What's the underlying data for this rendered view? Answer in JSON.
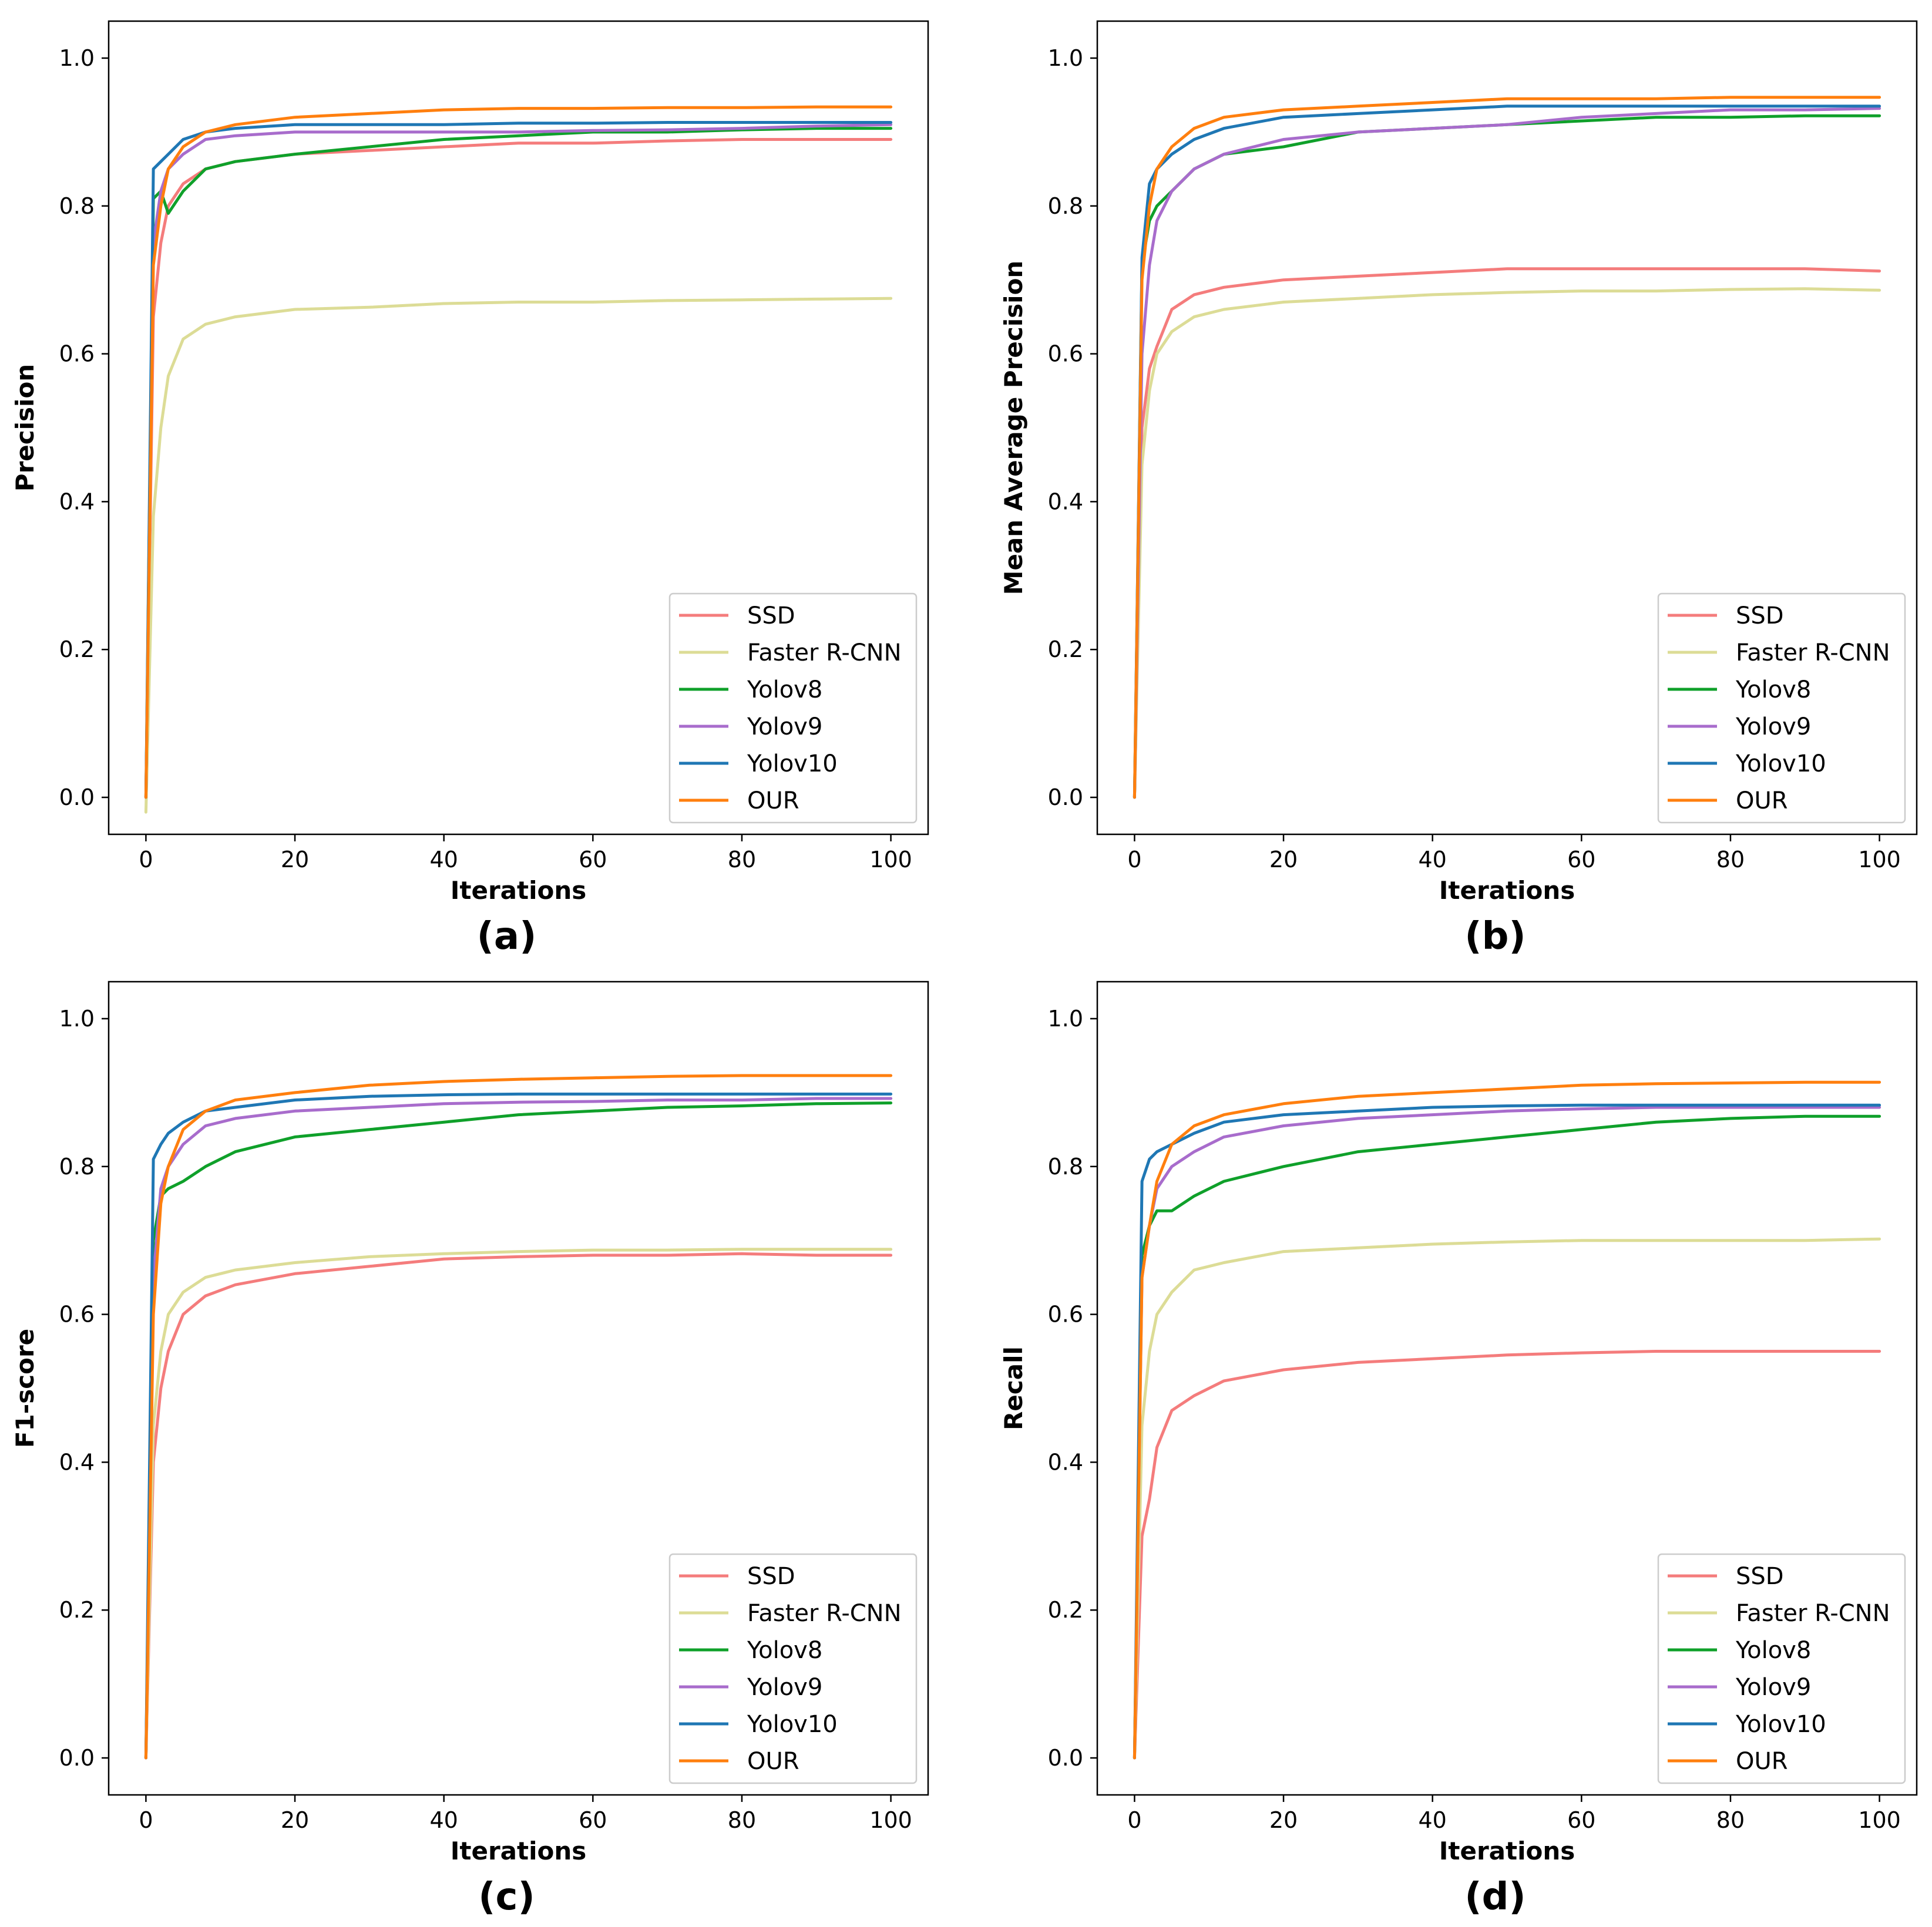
{
  "colors": {
    "SSD": "#f47c7c",
    "Faster R-CNN": "#dcdc96",
    "Yolov8": "#0fa02a",
    "Yolov9": "#a86ccc",
    "Yolov10": "#1f77b4",
    "OUR": "#ff7f0e",
    "axis": "#000000",
    "legend_border": "#cccccc"
  },
  "chart_data": [
    {
      "type": "line",
      "panel_label": "(a)",
      "title": "",
      "xlabel": "Iterations",
      "ylabel": "Precision",
      "xlim": [
        -5,
        105
      ],
      "ylim": [
        -0.05,
        1.05
      ],
      "xticks": [
        0,
        20,
        40,
        60,
        80,
        100
      ],
      "xtick_labels": [
        "0",
        "20",
        "40",
        "60",
        "80",
        "100"
      ],
      "yticks": [
        0.0,
        0.2,
        0.4,
        0.6,
        0.8,
        1.0
      ],
      "ytick_labels": [
        "0.0",
        "0.2",
        "0.4",
        "0.6",
        "0.8",
        "1.0"
      ],
      "grid": false,
      "legend_position": "lower-right",
      "x": [
        0,
        1,
        2,
        3,
        5,
        8,
        12,
        20,
        30,
        40,
        50,
        60,
        70,
        80,
        90,
        100
      ],
      "series": [
        {
          "name": "SSD",
          "values": [
            0.0,
            0.65,
            0.75,
            0.8,
            0.83,
            0.85,
            0.86,
            0.87,
            0.875,
            0.88,
            0.885,
            0.885,
            0.888,
            0.89,
            0.89,
            0.89
          ]
        },
        {
          "name": "Faster R-CNN",
          "values": [
            -0.02,
            0.38,
            0.5,
            0.57,
            0.62,
            0.64,
            0.65,
            0.66,
            0.663,
            0.668,
            0.67,
            0.67,
            0.672,
            0.673,
            0.674,
            0.675
          ]
        },
        {
          "name": "Yolov8",
          "values": [
            0.0,
            0.81,
            0.82,
            0.79,
            0.82,
            0.85,
            0.86,
            0.87,
            0.88,
            0.89,
            0.895,
            0.9,
            0.9,
            0.903,
            0.905,
            0.905
          ]
        },
        {
          "name": "Yolov9",
          "values": [
            0.0,
            0.75,
            0.82,
            0.85,
            0.87,
            0.89,
            0.895,
            0.9,
            0.9,
            0.9,
            0.9,
            0.902,
            0.903,
            0.905,
            0.908,
            0.91
          ]
        },
        {
          "name": "Yolov10",
          "values": [
            0.0,
            0.85,
            0.86,
            0.87,
            0.89,
            0.9,
            0.905,
            0.91,
            0.91,
            0.91,
            0.912,
            0.912,
            0.913,
            0.913,
            0.913,
            0.913
          ]
        },
        {
          "name": "OUR",
          "values": [
            0.0,
            0.72,
            0.8,
            0.85,
            0.88,
            0.9,
            0.91,
            0.92,
            0.925,
            0.93,
            0.932,
            0.932,
            0.933,
            0.933,
            0.934,
            0.934
          ]
        }
      ]
    },
    {
      "type": "line",
      "panel_label": "(b)",
      "title": "",
      "xlabel": "Iterations",
      "ylabel": "Mean Average Precision",
      "xlim": [
        -5,
        105
      ],
      "ylim": [
        -0.05,
        1.05
      ],
      "xticks": [
        0,
        20,
        40,
        60,
        80,
        100
      ],
      "xtick_labels": [
        "0",
        "20",
        "40",
        "60",
        "80",
        "100"
      ],
      "yticks": [
        0.0,
        0.2,
        0.4,
        0.6,
        0.8,
        1.0
      ],
      "ytick_labels": [
        "0.0",
        "0.2",
        "0.4",
        "0.6",
        "0.8",
        "1.0"
      ],
      "grid": false,
      "legend_position": "lower-right",
      "x": [
        0,
        1,
        2,
        3,
        5,
        8,
        12,
        20,
        30,
        40,
        50,
        60,
        70,
        80,
        90,
        100
      ],
      "series": [
        {
          "name": "SSD",
          "values": [
            0.0,
            0.5,
            0.58,
            0.61,
            0.66,
            0.68,
            0.69,
            0.7,
            0.705,
            0.71,
            0.715,
            0.715,
            0.715,
            0.715,
            0.715,
            0.712
          ]
        },
        {
          "name": "Faster R-CNN",
          "values": [
            0.0,
            0.45,
            0.55,
            0.6,
            0.63,
            0.65,
            0.66,
            0.67,
            0.675,
            0.68,
            0.683,
            0.685,
            0.685,
            0.687,
            0.688,
            0.686
          ]
        },
        {
          "name": "Yolov8",
          "values": [
            0.0,
            0.72,
            0.78,
            0.8,
            0.82,
            0.85,
            0.87,
            0.88,
            0.9,
            0.905,
            0.91,
            0.915,
            0.92,
            0.92,
            0.922,
            0.922
          ]
        },
        {
          "name": "Yolov9",
          "values": [
            0.0,
            0.6,
            0.72,
            0.78,
            0.82,
            0.85,
            0.87,
            0.89,
            0.9,
            0.905,
            0.91,
            0.92,
            0.925,
            0.93,
            0.93,
            0.932
          ]
        },
        {
          "name": "Yolov10",
          "values": [
            0.0,
            0.73,
            0.83,
            0.85,
            0.87,
            0.89,
            0.905,
            0.92,
            0.925,
            0.93,
            0.935,
            0.935,
            0.935,
            0.935,
            0.935,
            0.935
          ]
        },
        {
          "name": "OUR",
          "values": [
            0.0,
            0.7,
            0.8,
            0.85,
            0.88,
            0.905,
            0.92,
            0.93,
            0.935,
            0.94,
            0.945,
            0.945,
            0.945,
            0.947,
            0.947,
            0.947
          ]
        }
      ]
    },
    {
      "type": "line",
      "panel_label": "(c)",
      "title": "",
      "xlabel": "Iterations",
      "ylabel": "F1-score",
      "xlim": [
        -5,
        105
      ],
      "ylim": [
        -0.05,
        1.05
      ],
      "xticks": [
        0,
        20,
        40,
        60,
        80,
        100
      ],
      "xtick_labels": [
        "0",
        "20",
        "40",
        "60",
        "80",
        "100"
      ],
      "yticks": [
        0.0,
        0.2,
        0.4,
        0.6,
        0.8,
        1.0
      ],
      "ytick_labels": [
        "0.0",
        "0.2",
        "0.4",
        "0.6",
        "0.8",
        "1.0"
      ],
      "grid": false,
      "legend_position": "lower-right",
      "x": [
        0,
        1,
        2,
        3,
        5,
        8,
        12,
        20,
        30,
        40,
        50,
        60,
        70,
        80,
        90,
        100
      ],
      "series": [
        {
          "name": "SSD",
          "values": [
            0.0,
            0.4,
            0.5,
            0.55,
            0.6,
            0.625,
            0.64,
            0.655,
            0.665,
            0.675,
            0.678,
            0.68,
            0.68,
            0.682,
            0.68,
            0.68
          ]
        },
        {
          "name": "Faster R-CNN",
          "values": [
            0.0,
            0.45,
            0.55,
            0.6,
            0.63,
            0.65,
            0.66,
            0.67,
            0.678,
            0.682,
            0.685,
            0.687,
            0.687,
            0.688,
            0.688,
            0.688
          ]
        },
        {
          "name": "Yolov8",
          "values": [
            0.0,
            0.7,
            0.76,
            0.77,
            0.78,
            0.8,
            0.82,
            0.84,
            0.85,
            0.86,
            0.87,
            0.875,
            0.88,
            0.882,
            0.885,
            0.886
          ]
        },
        {
          "name": "Yolov9",
          "values": [
            0.0,
            0.65,
            0.77,
            0.8,
            0.83,
            0.855,
            0.865,
            0.875,
            0.88,
            0.885,
            0.887,
            0.888,
            0.89,
            0.89,
            0.892,
            0.892
          ]
        },
        {
          "name": "Yolov10",
          "values": [
            0.0,
            0.81,
            0.83,
            0.845,
            0.86,
            0.875,
            0.88,
            0.89,
            0.895,
            0.897,
            0.898,
            0.898,
            0.898,
            0.898,
            0.898,
            0.898
          ]
        },
        {
          "name": "OUR",
          "values": [
            0.0,
            0.6,
            0.75,
            0.8,
            0.85,
            0.875,
            0.89,
            0.9,
            0.91,
            0.915,
            0.918,
            0.92,
            0.922,
            0.923,
            0.923,
            0.923
          ]
        }
      ]
    },
    {
      "type": "line",
      "panel_label": "(d)",
      "title": "",
      "xlabel": "Iterations",
      "ylabel": "Recall",
      "xlim": [
        -5,
        105
      ],
      "ylim": [
        -0.05,
        1.05
      ],
      "xticks": [
        0,
        20,
        40,
        60,
        80,
        100
      ],
      "xtick_labels": [
        "0",
        "20",
        "40",
        "60",
        "80",
        "100"
      ],
      "yticks": [
        0.0,
        0.2,
        0.4,
        0.6,
        0.8,
        1.0
      ],
      "ytick_labels": [
        "0.0",
        "0.2",
        "0.4",
        "0.6",
        "0.8",
        "1.0"
      ],
      "grid": false,
      "legend_position": "lower-right",
      "x": [
        0,
        1,
        2,
        3,
        5,
        8,
        12,
        20,
        30,
        40,
        50,
        60,
        70,
        80,
        90,
        100
      ],
      "series": [
        {
          "name": "SSD",
          "values": [
            0.0,
            0.3,
            0.35,
            0.42,
            0.47,
            0.49,
            0.51,
            0.525,
            0.535,
            0.54,
            0.545,
            0.548,
            0.55,
            0.55,
            0.55,
            0.55
          ]
        },
        {
          "name": "Faster R-CNN",
          "values": [
            0.0,
            0.45,
            0.55,
            0.6,
            0.63,
            0.66,
            0.67,
            0.685,
            0.69,
            0.695,
            0.698,
            0.7,
            0.7,
            0.7,
            0.7,
            0.702
          ]
        },
        {
          "name": "Yolov8",
          "values": [
            0.0,
            0.68,
            0.72,
            0.74,
            0.74,
            0.76,
            0.78,
            0.8,
            0.82,
            0.83,
            0.84,
            0.85,
            0.86,
            0.865,
            0.868,
            0.868
          ]
        },
        {
          "name": "Yolov9",
          "values": [
            0.0,
            0.65,
            0.72,
            0.77,
            0.8,
            0.82,
            0.84,
            0.855,
            0.865,
            0.87,
            0.875,
            0.878,
            0.88,
            0.88,
            0.88,
            0.88
          ]
        },
        {
          "name": "Yolov10",
          "values": [
            0.0,
            0.78,
            0.81,
            0.82,
            0.83,
            0.845,
            0.86,
            0.87,
            0.875,
            0.88,
            0.882,
            0.883,
            0.883,
            0.883,
            0.883,
            0.883
          ]
        },
        {
          "name": "OUR",
          "values": [
            0.0,
            0.65,
            0.72,
            0.78,
            0.83,
            0.855,
            0.87,
            0.885,
            0.895,
            0.9,
            0.905,
            0.91,
            0.912,
            0.913,
            0.914,
            0.914
          ]
        }
      ]
    }
  ]
}
